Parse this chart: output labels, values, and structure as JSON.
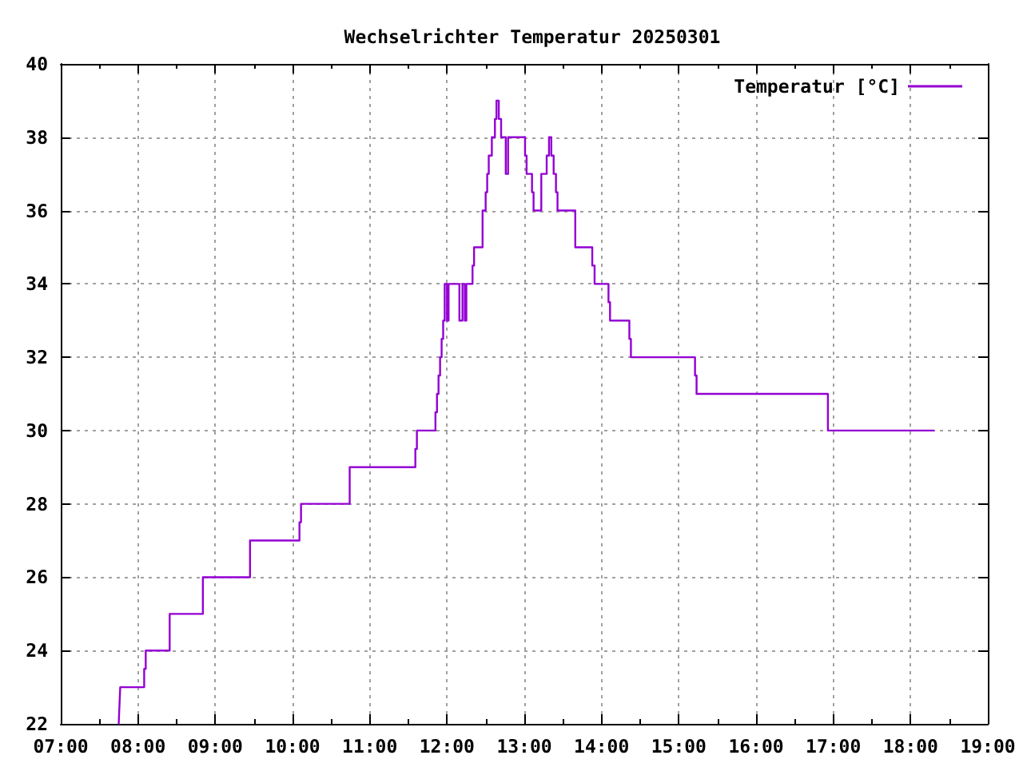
{
  "chart_data": {
    "type": "step",
    "title": "Wechselrichter Temperatur 20250301",
    "x": [
      7.75,
      7.76,
      7.77,
      8.08,
      8.1,
      8.41,
      8.84,
      9.45,
      10.09,
      10.11,
      10.74,
      11.59,
      11.61,
      11.85,
      11.87,
      11.89,
      11.91,
      11.93,
      11.95,
      11.97,
      12.0,
      12.02,
      12.16,
      12.2,
      12.23,
      12.25,
      12.33,
      12.35,
      12.46,
      12.5,
      12.52,
      12.54,
      12.58,
      12.62,
      12.64,
      12.67,
      12.7,
      12.76,
      12.79,
      13.01,
      13.03,
      13.1,
      13.12,
      13.22,
      13.29,
      13.32,
      13.35,
      13.38,
      13.41,
      13.43,
      13.66,
      13.88,
      13.91,
      14.09,
      14.11,
      14.36,
      14.38,
      15.21,
      15.23,
      16.93,
      18.3
    ],
    "series": [
      {
        "name": "Temperatur [°C]",
        "color": "#9400d3",
        "values": [
          22,
          22.5,
          23,
          23.5,
          24,
          25,
          26,
          27,
          27.5,
          28,
          29,
          29.5,
          30,
          30.5,
          31,
          31.5,
          32,
          32.5,
          33,
          34,
          33,
          34,
          33,
          34,
          33,
          34,
          34.5,
          35,
          36,
          36.5,
          37,
          37.5,
          38,
          38.5,
          39,
          38.5,
          38,
          37,
          38,
          37.5,
          37,
          36.5,
          36,
          37,
          37.5,
          38,
          37.5,
          37,
          36.5,
          36,
          35,
          34.5,
          34,
          33.5,
          33,
          32.5,
          32,
          31.5,
          31,
          30,
          30
        ]
      }
    ],
    "xlim": [
      7,
      19
    ],
    "xticks": [
      {
        "value": 7,
        "label": "07:00"
      },
      {
        "value": 7.5,
        "label": null
      },
      {
        "value": 8,
        "label": "08:00"
      },
      {
        "value": 8.5,
        "label": null
      },
      {
        "value": 9,
        "label": "09:00"
      },
      {
        "value": 9.5,
        "label": null
      },
      {
        "value": 10,
        "label": "10:00"
      },
      {
        "value": 10.5,
        "label": null
      },
      {
        "value": 11,
        "label": "11:00"
      },
      {
        "value": 11.5,
        "label": null
      },
      {
        "value": 12,
        "label": "12:00"
      },
      {
        "value": 12.5,
        "label": null
      },
      {
        "value": 13,
        "label": "13:00"
      },
      {
        "value": 13.5,
        "label": null
      },
      {
        "value": 14,
        "label": "14:00"
      },
      {
        "value": 14.5,
        "label": null
      },
      {
        "value": 15,
        "label": "15:00"
      },
      {
        "value": 15.5,
        "label": null
      },
      {
        "value": 16,
        "label": "16:00"
      },
      {
        "value": 16.5,
        "label": null
      },
      {
        "value": 17,
        "label": "17:00"
      },
      {
        "value": 17.5,
        "label": null
      },
      {
        "value": 18,
        "label": "18:00"
      },
      {
        "value": 18.5,
        "label": null
      },
      {
        "value": 19,
        "label": "19:00"
      }
    ],
    "ylim": [
      22,
      40
    ],
    "yticks": [
      22,
      24,
      26,
      28,
      30,
      32,
      34,
      36,
      38,
      40
    ],
    "grid": true,
    "legend": "top right"
  }
}
